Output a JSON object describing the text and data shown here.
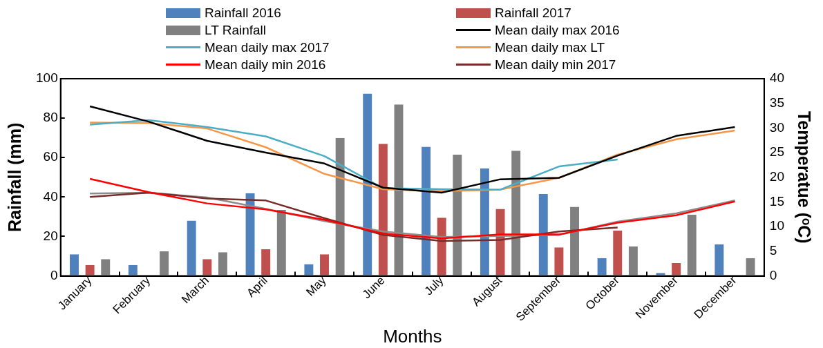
{
  "chart_data": {
    "type": "bar",
    "xlabel": "Months",
    "ylabel": "Rainfall (mm)",
    "y2label": "Temperatue (ᵒC)",
    "categories": [
      "January",
      "February",
      "March",
      "April",
      "May",
      "June",
      "July",
      "August",
      "September",
      "October",
      "November",
      "December"
    ],
    "ylim": [
      0,
      100
    ],
    "yticks": [
      0,
      20,
      40,
      60,
      80,
      100
    ],
    "y2lim": [
      0,
      40
    ],
    "y2ticks": [
      0,
      5,
      10,
      15,
      20,
      25,
      30,
      35,
      40
    ],
    "grid": false,
    "legend": "top",
    "series": [
      {
        "name": "Rainfall 2016",
        "color": "#4f81bd",
        "values": [
          11,
          5.5,
          28,
          42,
          6,
          92.5,
          65.5,
          54.5,
          41.5,
          9,
          1.5,
          16
        ]
      },
      {
        "name": "Rainfall 2017",
        "color": "#c0504d",
        "values": [
          5.5,
          null,
          8.5,
          13.5,
          11,
          67,
          29.5,
          34,
          14.5,
          23,
          6.5,
          null
        ]
      },
      {
        "name": "LT Rainfall",
        "color": "#808080",
        "values": [
          8.5,
          12.5,
          12,
          33.5,
          70,
          87,
          61.5,
          63.5,
          35,
          15,
          31,
          9
        ]
      },
      {
        "name": "Mean daily max 2016",
        "type": "line",
        "axis": "y2",
        "color": "#000000",
        "values": [
          34.4,
          31.3,
          27.4,
          25,
          22.8,
          17.9,
          16.9,
          19.6,
          19.9,
          24.4,
          28.4,
          30.2
        ]
      },
      {
        "name": "Mean daily max 2017",
        "type": "line",
        "axis": "y2",
        "color": "#4bacc6",
        "values": [
          30.7,
          31.6,
          30.2,
          28.3,
          24.3,
          17.8,
          17.6,
          17.5,
          22.2,
          23.6,
          null,
          null
        ]
      },
      {
        "name": "Mean daily max LT",
        "type": "line",
        "axis": "y2",
        "color": "#f79646",
        "values": [
          31.1,
          31,
          29.9,
          26.1,
          20.7,
          17.6,
          17.2,
          17.5,
          19.9,
          24.6,
          27.7,
          29.5
        ]
      },
      {
        "name": "Mean daily min 2016",
        "type": "line",
        "axis": "y2",
        "color": "#ff0000",
        "values": [
          19.7,
          17,
          14.7,
          13.5,
          11.4,
          8.6,
          7.6,
          8.4,
          8.4,
          10.8,
          12.3,
          15.1
        ]
      },
      {
        "name": "Mean daily min 2017",
        "type": "line",
        "axis": "y2",
        "color": "#772c2a",
        "values": [
          16,
          16.9,
          15.7,
          15.3,
          11.7,
          8.3,
          7.1,
          7.3,
          9,
          9.8,
          null,
          null
        ]
      },
      {
        "type": "line",
        "axis": "y2",
        "color": "#8c8c8c",
        "values": [
          16.7,
          16.9,
          15.9,
          13.6,
          11.1,
          9,
          7.9,
          8.1,
          8.3,
          11,
          12.7,
          15.3
        ]
      }
    ]
  }
}
